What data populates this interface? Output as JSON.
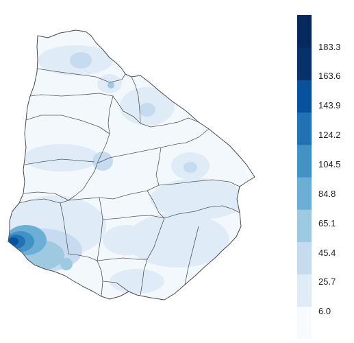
{
  "map": {
    "region": "Uruguay",
    "boundary_color": "#4a4a4a"
  },
  "legend": {
    "ticks": [
      "6.0",
      "25.7",
      "45.4",
      "65.1",
      "84.8",
      "104.5",
      "124.2",
      "143.9",
      "163.6",
      "183.3"
    ],
    "colors": [
      "#f7fbff",
      "#dfebf7",
      "#c6dbef",
      "#9ecae1",
      "#6baed6",
      "#4292c6",
      "#2171b5",
      "#08519c",
      "#08306b",
      "#062a5e"
    ]
  }
}
